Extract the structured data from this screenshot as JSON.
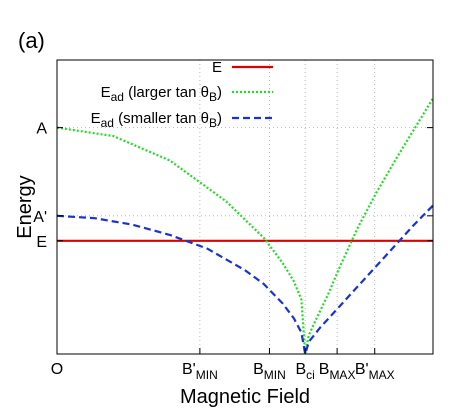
{
  "panel_label": "(a)",
  "chart_data": {
    "type": "line",
    "xlabel": "Magnetic Field",
    "ylabel": "Energy",
    "xlim": [
      0,
      1
    ],
    "ylim": [
      0,
      1
    ],
    "grid": true,
    "grid_style": "dotted",
    "legend_position": "top-right",
    "x_ticks": [
      {
        "value": 0.0,
        "label": "O"
      },
      {
        "value": 0.38,
        "label": "B'",
        "sub": "MIN"
      },
      {
        "value": 0.565,
        "label": "B",
        "sub": "MIN"
      },
      {
        "value": 0.66,
        "label": "B",
        "sub": "ci"
      },
      {
        "value": 0.745,
        "label": "B",
        "sub": "MAX"
      },
      {
        "value": 0.845,
        "label": "B'",
        "sub": "MAX"
      }
    ],
    "y_ticks": [
      {
        "value": 0.385,
        "label": "E"
      },
      {
        "value": 0.47,
        "label": "A'"
      },
      {
        "value": 0.77,
        "label": "A"
      }
    ],
    "series": [
      {
        "name": "E",
        "name_sub": "",
        "name_suffix": "",
        "color": "#dd0000",
        "style": "solid",
        "x": [
          0,
          1
        ],
        "y": [
          0.385,
          0.385
        ]
      },
      {
        "name": "E",
        "name_sub": "ad",
        "name_suffix": " (larger tan θ",
        "name_suffix_sub": "B",
        "name_close": ")",
        "color": "#22dd22",
        "style": "dotted",
        "x": [
          0,
          0.15,
          0.3,
          0.45,
          0.55,
          0.6,
          0.63,
          0.65,
          0.66,
          0.67,
          0.69,
          0.72,
          0.75,
          0.8,
          0.85,
          0.9,
          0.95,
          1.0
        ],
        "y": [
          0.77,
          0.741,
          0.658,
          0.519,
          0.395,
          0.31,
          0.247,
          0.185,
          0.0,
          0.065,
          0.12,
          0.2,
          0.29,
          0.43,
          0.55,
          0.66,
          0.765,
          0.87
        ]
      },
      {
        "name": "E",
        "name_sub": "ad",
        "name_suffix": " (smaller tan θ",
        "name_suffix_sub": "B",
        "name_close": ")",
        "color": "#1a33cc",
        "style": "dashed",
        "x": [
          0,
          0.1,
          0.2,
          0.3,
          0.4,
          0.5,
          0.55,
          0.6,
          0.63,
          0.65,
          0.66,
          0.67,
          0.7,
          0.75,
          0.8,
          0.85,
          0.9,
          0.95,
          1.0
        ],
        "y": [
          0.47,
          0.462,
          0.44,
          0.405,
          0.358,
          0.285,
          0.238,
          0.172,
          0.121,
          0.073,
          0.0,
          0.042,
          0.09,
          0.16,
          0.23,
          0.3,
          0.37,
          0.44,
          0.505
        ]
      }
    ]
  }
}
